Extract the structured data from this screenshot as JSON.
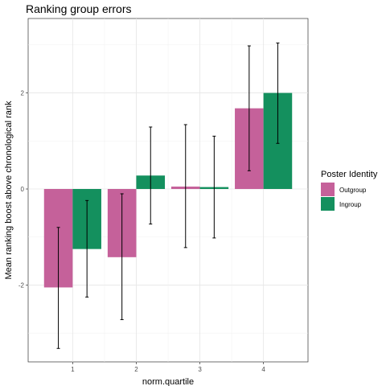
{
  "chart_data": {
    "type": "bar",
    "title": "Ranking group errors",
    "xlabel": "norm.quartile",
    "ylabel": "Mean ranking boost above chronological rank",
    "categories": [
      "1",
      "2",
      "3",
      "4"
    ],
    "y_ticks": [
      -2,
      0,
      2
    ],
    "y_tick_labels": [
      "-2",
      "0",
      "2"
    ],
    "ylim": [
      -3.6,
      3.55
    ],
    "grid": true,
    "legend_position": "right",
    "legend_title": "Poster Identity",
    "series": [
      {
        "name": "Outgroup",
        "color": "#c5619a",
        "values": [
          -2.05,
          -1.42,
          0.05,
          1.68
        ],
        "error_low": [
          -3.32,
          -2.72,
          -1.22,
          0.38
        ],
        "error_high": [
          -0.8,
          -0.1,
          1.34,
          2.98
        ]
      },
      {
        "name": "Ingroup",
        "color": "#14905e",
        "values": [
          -1.25,
          0.28,
          0.04,
          2.0
        ],
        "error_low": [
          -2.25,
          -0.73,
          -1.02,
          0.95
        ],
        "error_high": [
          -0.24,
          1.29,
          1.1,
          3.04
        ]
      }
    ]
  }
}
